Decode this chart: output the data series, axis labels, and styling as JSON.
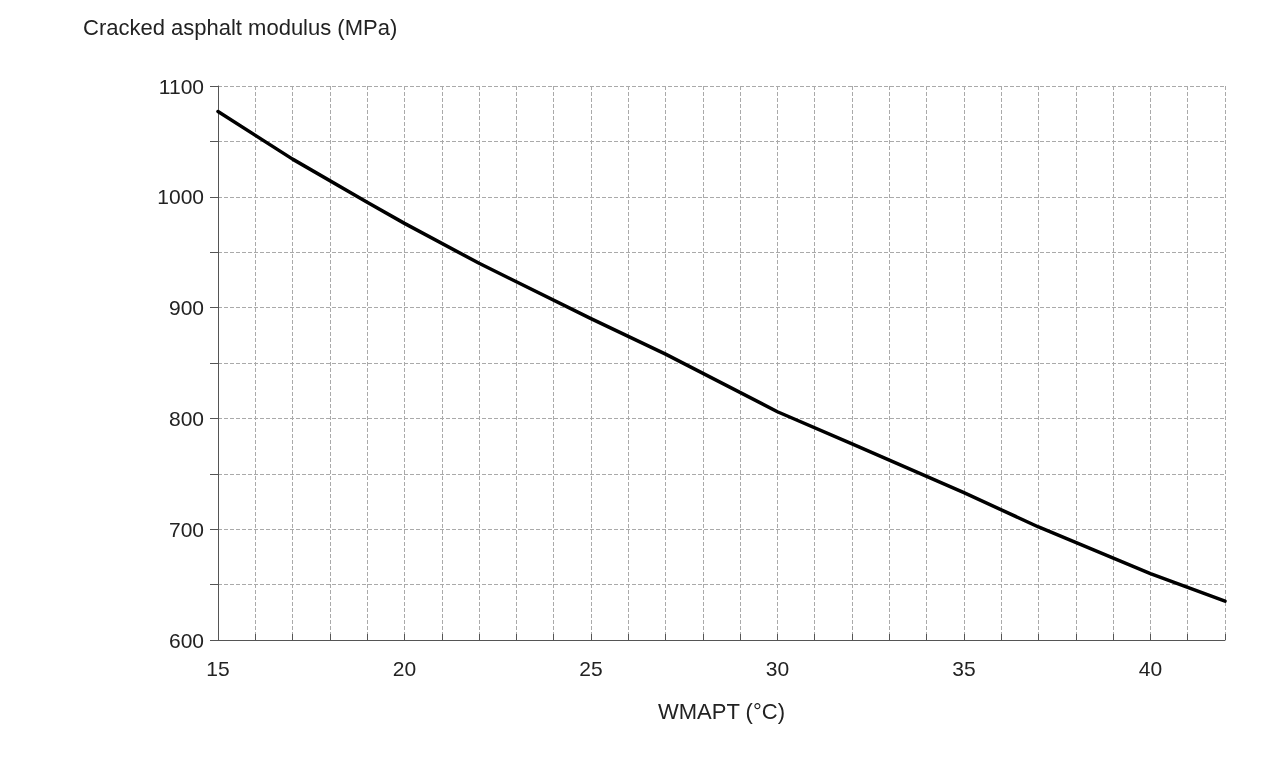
{
  "chart_data": {
    "type": "line",
    "ylabel": "Cracked asphalt modulus (MPa)",
    "xlabel": "WMAPT (°C)",
    "x": [
      15,
      17,
      19,
      20,
      22,
      25,
      27,
      30,
      32,
      35,
      37,
      40,
      42
    ],
    "series": [
      {
        "color": "#000000",
        "values": [
          1077,
          1034,
          995,
          976,
          940,
          890,
          858,
          806,
          777,
          733,
          702,
          660,
          635
        ]
      }
    ],
    "xlim": [
      15,
      42
    ],
    "xticks": [
      15,
      {
        "value": 16,
        "label": null
      },
      {
        "value": 17,
        "label": null
      },
      {
        "value": 18,
        "label": null
      },
      {
        "value": 19,
        "label": null
      },
      20,
      {
        "value": 21,
        "label": null
      },
      {
        "value": 22,
        "label": null
      },
      {
        "value": 23,
        "label": null
      },
      {
        "value": 24,
        "label": null
      },
      25,
      {
        "value": 26,
        "label": null
      },
      {
        "value": 27,
        "label": null
      },
      {
        "value": 28,
        "label": null
      },
      {
        "value": 29,
        "label": null
      },
      30,
      {
        "value": 31,
        "label": null
      },
      {
        "value": 32,
        "label": null
      },
      {
        "value": 33,
        "label": null
      },
      {
        "value": 34,
        "label": null
      },
      35,
      {
        "value": 36,
        "label": null
      },
      {
        "value": 37,
        "label": null
      },
      {
        "value": 38,
        "label": null
      },
      {
        "value": 39,
        "label": null
      },
      40,
      {
        "value": 41,
        "label": null
      },
      {
        "value": 42,
        "label": null
      }
    ],
    "ylim": [
      600,
      1100
    ],
    "yticks": [
      600,
      {
        "value": 650,
        "label": null
      },
      700,
      {
        "value": 750,
        "label": null
      },
      800,
      {
        "value": 850,
        "label": null
      },
      900,
      {
        "value": 950,
        "label": null
      },
      1000,
      {
        "value": 1050,
        "label": null
      },
      1100
    ],
    "grid": true,
    "marker": "none",
    "line_style": "solid"
  }
}
